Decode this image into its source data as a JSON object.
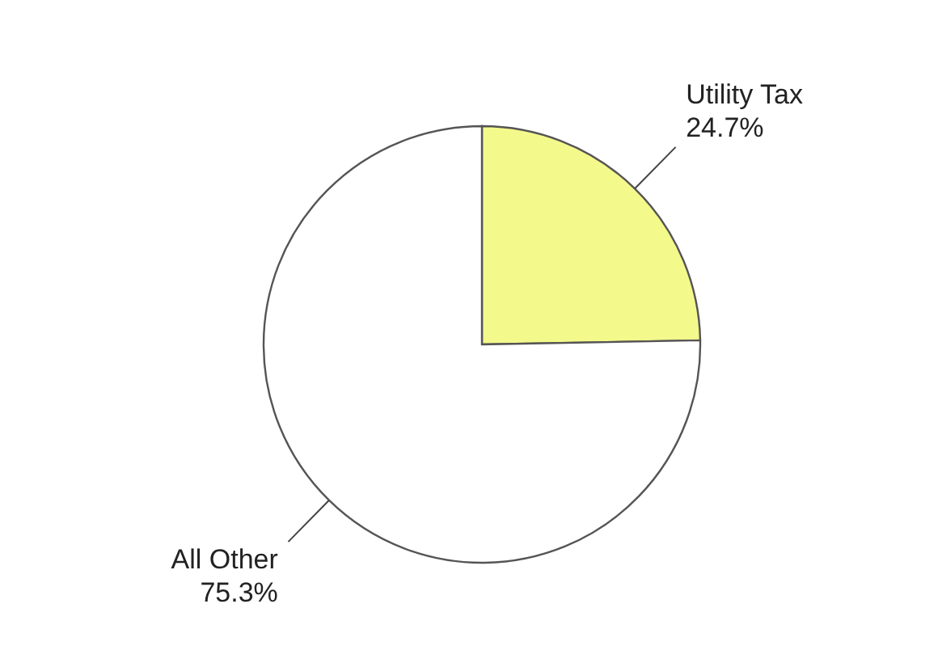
{
  "chart_data": {
    "type": "pie",
    "categories": [
      "Utility Tax",
      "All Other"
    ],
    "values": [
      24.7,
      75.3
    ],
    "colors": [
      "#f4f98c",
      "#ffffff"
    ],
    "value_labels": [
      "24.7%",
      "75.3%"
    ],
    "legend": false
  }
}
